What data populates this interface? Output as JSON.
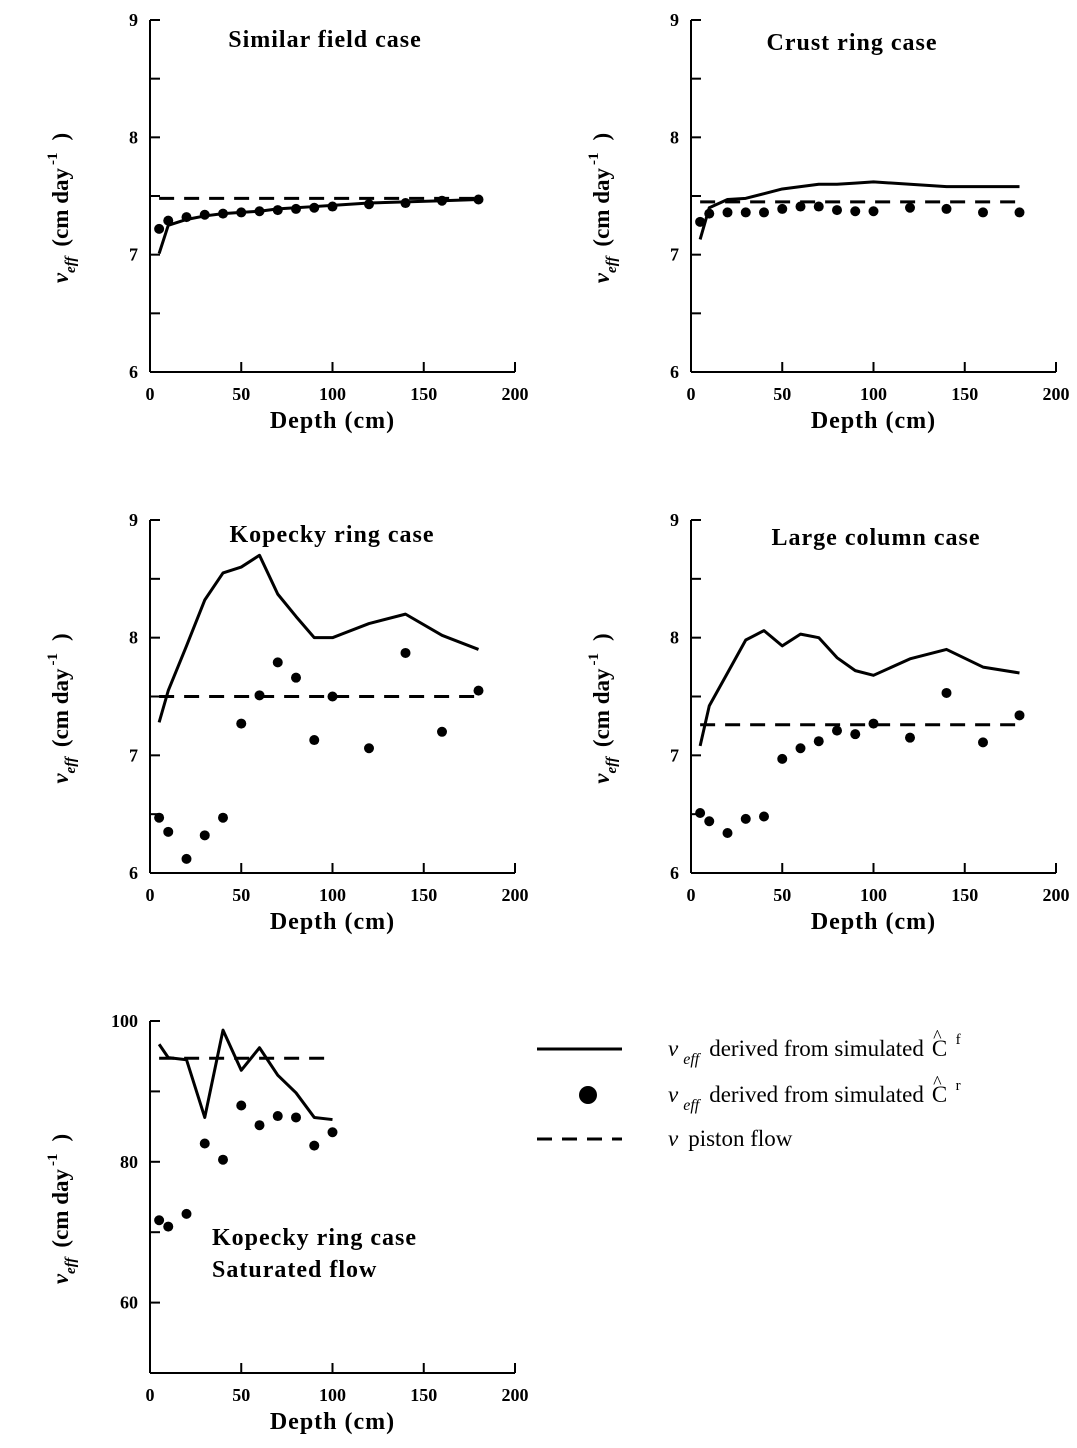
{
  "chart_data": [
    {
      "type": "line",
      "title": "Similar field case",
      "xlabel": "Depth (cm)",
      "ylabel": "(cm day",
      "ylabel_sym": "v",
      "ylabel_sub": "eff",
      "ylabel_sup": "-1",
      "xlim": [
        0,
        200
      ],
      "ylim": [
        6,
        9
      ],
      "xticks": [
        0,
        50,
        100,
        150,
        200
      ],
      "yticks": [
        6,
        7,
        8,
        9
      ],
      "series": [
        {
          "style": "solid",
          "x": [
            5,
            10,
            20,
            30,
            40,
            50,
            60,
            70,
            80,
            90,
            100,
            120,
            140,
            160,
            180
          ],
          "y": [
            7.01,
            7.25,
            7.3,
            7.33,
            7.35,
            7.36,
            7.37,
            7.39,
            7.4,
            7.41,
            7.42,
            7.44,
            7.45,
            7.46,
            7.47
          ]
        },
        {
          "style": "dots",
          "x": [
            5,
            10,
            20,
            30,
            40,
            50,
            60,
            70,
            80,
            90,
            100,
            120,
            140,
            160,
            180
          ],
          "y": [
            7.22,
            7.29,
            7.32,
            7.34,
            7.35,
            7.36,
            7.37,
            7.38,
            7.39,
            7.4,
            7.41,
            7.43,
            7.44,
            7.46,
            7.47
          ]
        },
        {
          "style": "dashed",
          "x": [
            5,
            180
          ],
          "y": [
            7.48,
            7.48
          ]
        }
      ]
    },
    {
      "type": "line",
      "title": "Crust ring case",
      "xlabel": "Depth (cm)",
      "ylabel": "(cm day",
      "ylabel_sym": "v",
      "ylabel_sub": "eff",
      "ylabel_sup": "-1",
      "xlim": [
        0,
        200
      ],
      "ylim": [
        6,
        9
      ],
      "xticks": [
        0,
        50,
        100,
        150,
        200
      ],
      "yticks": [
        6,
        7,
        8,
        9
      ],
      "series": [
        {
          "style": "solid",
          "x": [
            5,
            10,
            20,
            30,
            40,
            50,
            60,
            70,
            80,
            90,
            100,
            120,
            140,
            160,
            180
          ],
          "y": [
            7.13,
            7.4,
            7.47,
            7.48,
            7.52,
            7.56,
            7.58,
            7.6,
            7.6,
            7.61,
            7.62,
            7.6,
            7.58,
            7.58,
            7.58
          ]
        },
        {
          "style": "dots",
          "x": [
            5,
            10,
            20,
            30,
            40,
            50,
            60,
            70,
            80,
            90,
            100,
            120,
            140,
            160,
            180
          ],
          "y": [
            7.28,
            7.35,
            7.36,
            7.36,
            7.36,
            7.39,
            7.41,
            7.41,
            7.38,
            7.37,
            7.37,
            7.4,
            7.39,
            7.36,
            7.36
          ]
        },
        {
          "style": "dashed",
          "x": [
            5,
            180
          ],
          "y": [
            7.45,
            7.45
          ]
        }
      ]
    },
    {
      "type": "line",
      "title": "Kopecky ring case",
      "xlabel": "Depth (cm)",
      "ylabel": "(cm day",
      "ylabel_sym": "v",
      "ylabel_sub": "eff",
      "ylabel_sup": "-1",
      "xlim": [
        0,
        200
      ],
      "ylim": [
        6,
        9
      ],
      "xticks": [
        0,
        50,
        100,
        150,
        200
      ],
      "yticks": [
        6,
        7,
        8,
        9
      ],
      "series": [
        {
          "style": "solid",
          "x": [
            5,
            10,
            20,
            30,
            40,
            50,
            60,
            70,
            80,
            90,
            100,
            120,
            140,
            160,
            180
          ],
          "y": [
            7.28,
            7.55,
            7.93,
            8.32,
            8.55,
            8.6,
            8.7,
            8.37,
            8.18,
            8.0,
            8.0,
            8.12,
            8.2,
            8.02,
            7.9
          ]
        },
        {
          "style": "dots",
          "x": [
            5,
            10,
            20,
            30,
            40,
            50,
            60,
            70,
            80,
            90,
            100,
            120,
            140,
            160,
            180
          ],
          "y": [
            6.47,
            6.35,
            6.12,
            6.32,
            6.47,
            7.27,
            7.51,
            7.79,
            7.66,
            7.13,
            7.5,
            7.06,
            7.87,
            7.2,
            7.55
          ]
        },
        {
          "style": "dashed",
          "x": [
            5,
            180
          ],
          "y": [
            7.5,
            7.5
          ]
        }
      ]
    },
    {
      "type": "line",
      "title": "Large column case",
      "xlabel": "Depth (cm)",
      "ylabel": "(cm day",
      "ylabel_sym": "v",
      "ylabel_sub": "eff",
      "ylabel_sup": "-1",
      "xlim": [
        0,
        200
      ],
      "ylim": [
        6,
        9
      ],
      "xticks": [
        0,
        50,
        100,
        150,
        200
      ],
      "yticks": [
        6,
        7,
        8,
        9
      ],
      "series": [
        {
          "style": "solid",
          "x": [
            5,
            10,
            20,
            30,
            40,
            50,
            60,
            70,
            80,
            90,
            100,
            120,
            140,
            160,
            180
          ],
          "y": [
            7.08,
            7.42,
            7.7,
            7.98,
            8.06,
            7.93,
            8.03,
            8.0,
            7.83,
            7.72,
            7.68,
            7.82,
            7.9,
            7.75,
            7.7
          ]
        },
        {
          "style": "dots",
          "x": [
            5,
            10,
            20,
            30,
            40,
            50,
            60,
            70,
            80,
            90,
            100,
            120,
            140,
            160,
            180
          ],
          "y": [
            6.51,
            6.44,
            6.34,
            6.46,
            6.48,
            6.97,
            7.06,
            7.12,
            7.21,
            7.18,
            7.27,
            7.15,
            7.53,
            7.11,
            7.34
          ]
        },
        {
          "style": "dashed",
          "x": [
            5,
            180
          ],
          "y": [
            7.26,
            7.26
          ]
        }
      ]
    },
    {
      "type": "line",
      "title_lines": [
        "Kopecky ring case",
        "Saturated flow"
      ],
      "xlabel": "Depth (cm)",
      "ylabel": "(cm day",
      "ylabel_sym": "v",
      "ylabel_sub": "eff",
      "ylabel_sup": "-1",
      "xlim": [
        0,
        200
      ],
      "ylim": [
        50,
        100
      ],
      "xticks": [
        0,
        50,
        100,
        150,
        200
      ],
      "yticks": [
        60,
        80,
        100
      ],
      "series": [
        {
          "style": "solid",
          "x": [
            5,
            10,
            20,
            30,
            40,
            50,
            60,
            70,
            80,
            90,
            100
          ],
          "y": [
            96.7,
            94.8,
            94.5,
            86.3,
            98.7,
            93.0,
            96.2,
            92.3,
            89.8,
            86.3,
            86.0
          ]
        },
        {
          "style": "dots",
          "x": [
            5,
            10,
            20,
            30,
            40,
            50,
            60,
            70,
            80,
            90,
            100
          ],
          "y": [
            71.7,
            70.8,
            72.6,
            82.6,
            80.3,
            88.0,
            85.2,
            86.5,
            86.3,
            82.3,
            84.2
          ]
        },
        {
          "style": "dashed",
          "x": [
            5,
            100
          ],
          "y": [
            94.7,
            94.7
          ]
        }
      ]
    }
  ],
  "legend": [
    {
      "style": "solid",
      "sym": "v",
      "sub": "eff",
      "text": "derived from simulated",
      "hat": "C",
      "sup": "f"
    },
    {
      "style": "dots",
      "sym": "v",
      "sub": "eff",
      "text": "derived from simulated",
      "hat": "C",
      "sup": "r"
    },
    {
      "style": "dashed",
      "sym": "v",
      "sub": "",
      "text": "piston flow",
      "hat": "",
      "sup": ""
    }
  ]
}
